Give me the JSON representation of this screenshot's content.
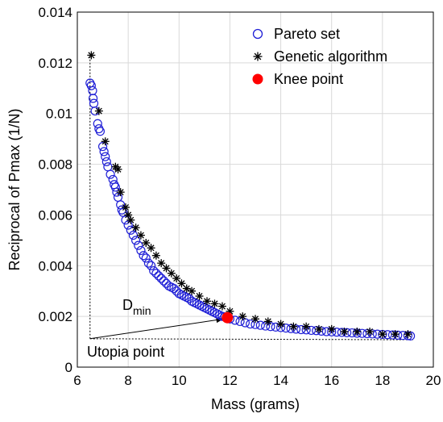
{
  "chart_data": {
    "type": "scatter",
    "title": "",
    "xlabel": "Mass (grams)",
    "ylabel": "Reciprocal of Pmax (1/N)",
    "xlim": [
      6,
      20
    ],
    "ylim": [
      0,
      0.014
    ],
    "xticks": [
      6,
      8,
      10,
      12,
      14,
      16,
      18,
      20
    ],
    "yticks": [
      0,
      0.002,
      0.004,
      0.006,
      0.008,
      0.01,
      0.012,
      0.014
    ],
    "xtick_labels": [
      "6",
      "8",
      "10",
      "12",
      "14",
      "16",
      "18",
      "20"
    ],
    "ytick_labels": [
      "0",
      "0.002",
      "0.004",
      "0.006",
      "0.008",
      "0.01",
      "0.012",
      "0.014"
    ],
    "grid": true,
    "legend_position": "top-right",
    "series": [
      {
        "name": "Pareto set",
        "marker": "open-circle",
        "color": "#1f1fd6",
        "x": [
          6.5,
          6.55,
          6.6,
          6.62,
          6.65,
          6.7,
          6.8,
          6.85,
          6.9,
          7.0,
          7.05,
          7.1,
          7.15,
          7.2,
          7.3,
          7.4,
          7.45,
          7.5,
          7.55,
          7.6,
          7.7,
          7.75,
          7.8,
          7.9,
          8.0,
          8.1,
          8.2,
          8.3,
          8.4,
          8.5,
          8.6,
          8.7,
          8.8,
          8.9,
          9.0,
          9.1,
          9.2,
          9.3,
          9.4,
          9.5,
          9.6,
          9.7,
          9.8,
          9.9,
          10.0,
          10.1,
          10.2,
          10.3,
          10.4,
          10.5,
          10.6,
          10.7,
          10.8,
          10.9,
          11.0,
          11.1,
          11.2,
          11.3,
          11.4,
          11.5,
          11.6,
          11.7,
          11.8,
          12.0,
          12.2,
          12.4,
          12.6,
          12.8,
          13.0,
          13.2,
          13.4,
          13.6,
          13.8,
          14.0,
          14.2,
          14.4,
          14.6,
          14.8,
          15.0,
          15.2,
          15.4,
          15.6,
          15.8,
          16.0,
          16.2,
          16.4,
          16.6,
          16.8,
          17.0,
          17.2,
          17.4,
          17.6,
          17.8,
          18.0,
          18.2,
          18.4,
          18.6,
          18.8,
          19.0,
          19.1
        ],
        "y": [
          0.0112,
          0.0111,
          0.0109,
          0.0106,
          0.0104,
          0.0101,
          0.0096,
          0.0094,
          0.0093,
          0.0087,
          0.0085,
          0.0083,
          0.0081,
          0.0079,
          0.0076,
          0.0074,
          0.0072,
          0.0071,
          0.0069,
          0.0067,
          0.0064,
          0.0062,
          0.0061,
          0.0058,
          0.0056,
          0.0054,
          0.0052,
          0.005,
          0.0048,
          0.0046,
          0.0044,
          0.0043,
          0.0041,
          0.004,
          0.0038,
          0.0037,
          0.0036,
          0.0035,
          0.0034,
          0.0033,
          0.0032,
          0.00315,
          0.0031,
          0.003,
          0.0029,
          0.00285,
          0.0028,
          0.00275,
          0.0027,
          0.0026,
          0.00255,
          0.0025,
          0.00245,
          0.0024,
          0.00235,
          0.0023,
          0.00225,
          0.0022,
          0.00215,
          0.0021,
          0.00205,
          0.002,
          0.00198,
          0.0019,
          0.00185,
          0.0018,
          0.00175,
          0.0017,
          0.00168,
          0.00165,
          0.00162,
          0.0016,
          0.00158,
          0.00156,
          0.00154,
          0.00152,
          0.0015,
          0.00148,
          0.00147,
          0.00145,
          0.00144,
          0.00142,
          0.0014,
          0.00139,
          0.00138,
          0.00137,
          0.00136,
          0.00135,
          0.00134,
          0.00133,
          0.00132,
          0.00131,
          0.0013,
          0.00129,
          0.00128,
          0.00127,
          0.00126,
          0.00125,
          0.00124,
          0.00123
        ]
      },
      {
        "name": "Genetic algorithm",
        "marker": "asterisk",
        "color": "#000000",
        "x": [
          6.55,
          6.85,
          7.1,
          7.5,
          7.6,
          7.7,
          7.9,
          8.0,
          8.1,
          8.3,
          8.5,
          8.7,
          8.9,
          9.1,
          9.3,
          9.5,
          9.7,
          9.9,
          10.1,
          10.3,
          10.5,
          10.8,
          11.1,
          11.4,
          11.7,
          12.0,
          12.5,
          13.0,
          13.5,
          14.0,
          14.5,
          15.0,
          15.5,
          16.0,
          16.5,
          17.0,
          17.5,
          18.0,
          18.5,
          19.0
        ],
        "y": [
          0.0123,
          0.0101,
          0.0089,
          0.0079,
          0.0078,
          0.0069,
          0.0063,
          0.006,
          0.0058,
          0.0055,
          0.0052,
          0.0049,
          0.0047,
          0.0044,
          0.0041,
          0.0039,
          0.0037,
          0.0035,
          0.0033,
          0.0031,
          0.003,
          0.0028,
          0.0026,
          0.0025,
          0.0024,
          0.0022,
          0.002,
          0.0019,
          0.0018,
          0.0017,
          0.0016,
          0.0016,
          0.0015,
          0.0015,
          0.0014,
          0.0014,
          0.0014,
          0.0013,
          0.0013,
          0.0013
        ]
      },
      {
        "name": "Knee point",
        "marker": "filled-circle",
        "color": "#ff0000",
        "x": [
          11.9
        ],
        "y": [
          0.00195
        ]
      }
    ],
    "annotations": {
      "dmin_label": "D",
      "dmin_sub": "min",
      "utopia_label": "Utopia point",
      "utopia_x": 6.5,
      "utopia_y": 0.00112,
      "utopia_line_end_x": 19.2,
      "utopia_line_end_y": 0.00108,
      "arrow_to_x": 11.75,
      "arrow_to_y": 0.0019
    }
  }
}
